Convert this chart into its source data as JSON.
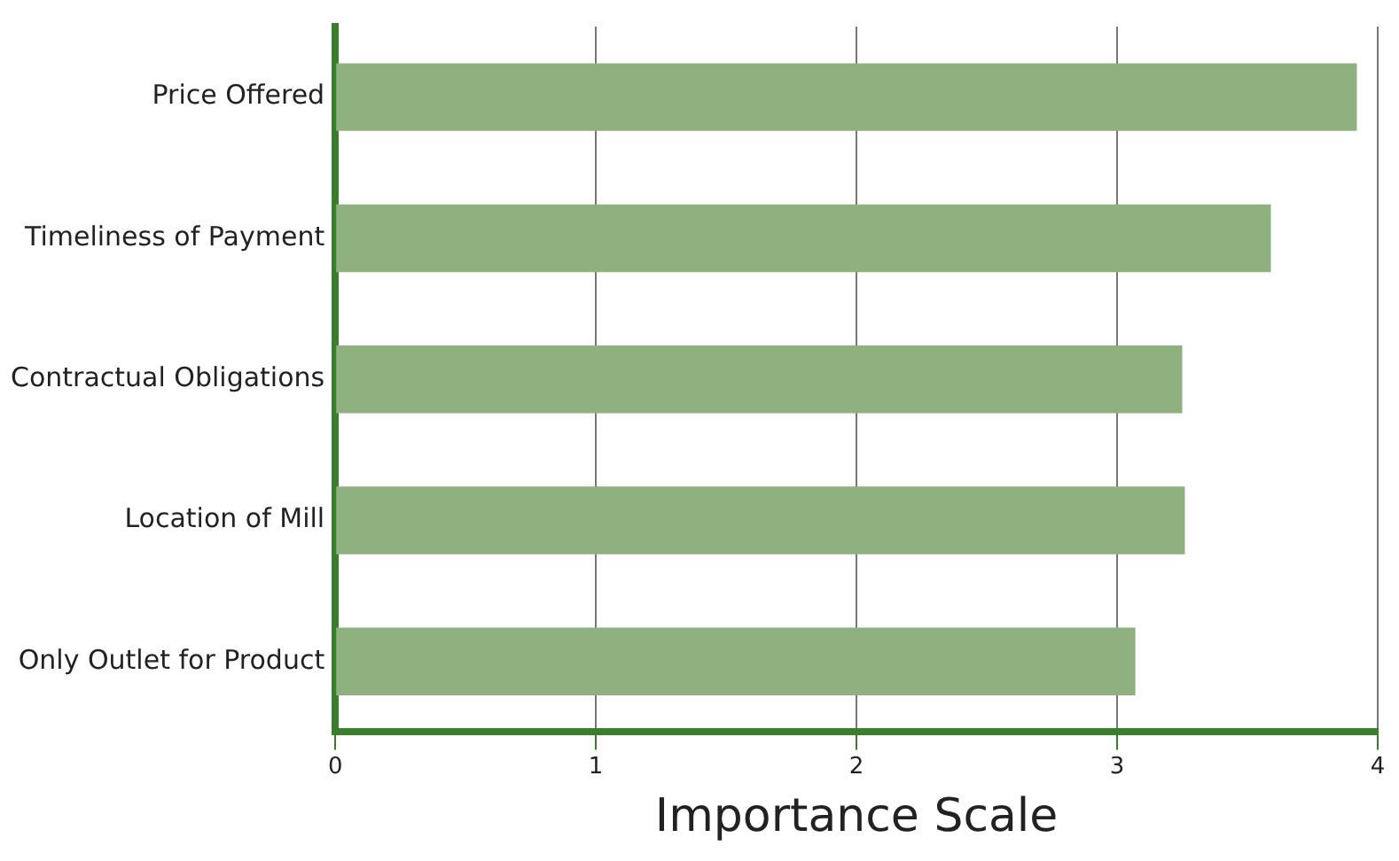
{
  "chart_data": {
    "type": "bar",
    "orientation": "horizontal",
    "xlabel": "Importance Scale",
    "categories": [
      "Price Offered",
      "Timeliness of Payment",
      "Contractual Obligations",
      "Location of Mill",
      "Only Outlet for Product"
    ],
    "values": [
      3.92,
      3.59,
      3.25,
      3.26,
      3.07
    ],
    "color": "#8fb180",
    "xlim": [
      0,
      4
    ],
    "xticks": [
      0,
      1,
      2,
      3,
      4
    ],
    "grid": "x",
    "legend": false
  }
}
